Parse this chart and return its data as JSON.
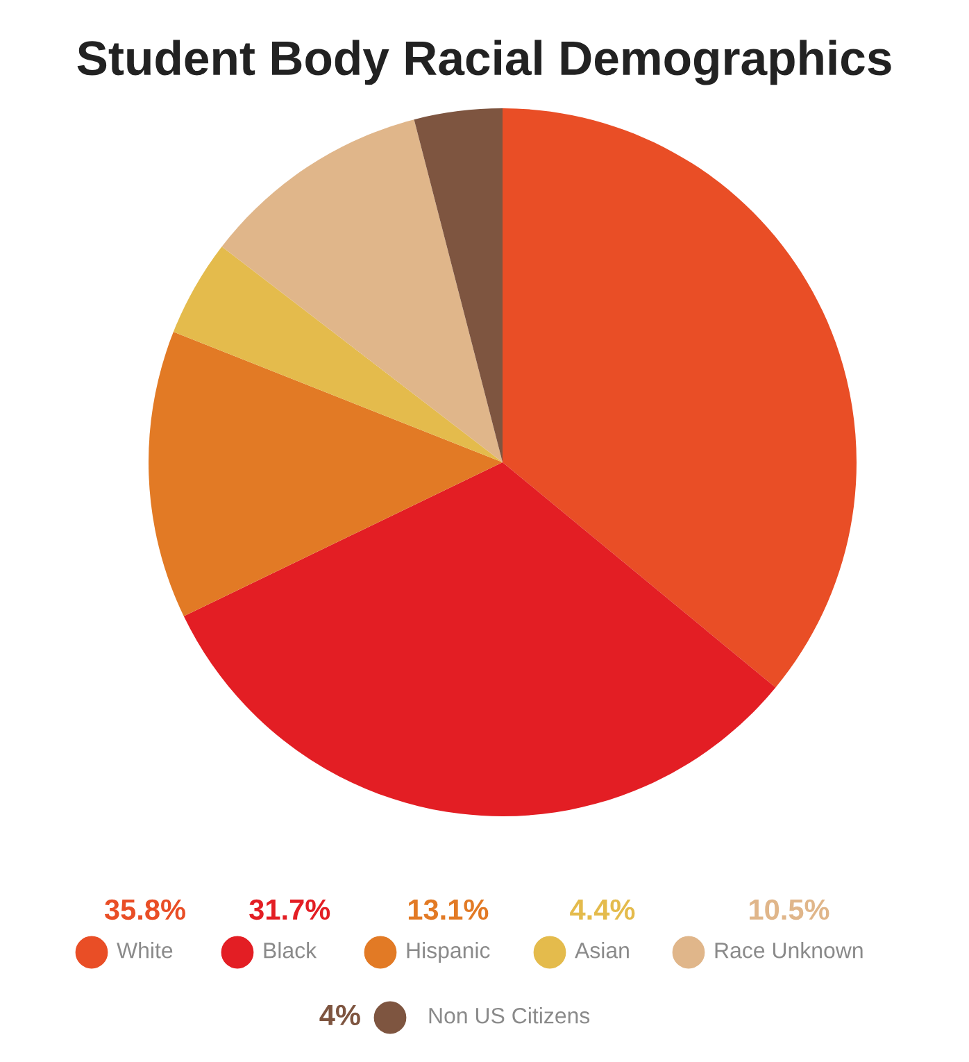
{
  "chart_data": {
    "type": "pie",
    "title": "Student Body Racial Demographics",
    "categories": [
      "White",
      "Black",
      "Hispanic",
      "Asian",
      "Race Unknown",
      "Non US Citizens"
    ],
    "values": [
      35.8,
      31.7,
      13.1,
      4.4,
      10.5,
      4
    ],
    "value_labels": [
      "35.8%",
      "31.7%",
      "13.1%",
      "4.4%",
      "10.5%",
      "4%"
    ],
    "colors": [
      "#e94e26",
      "#e31e24",
      "#e27a25",
      "#e4bb4c",
      "#e0b68a",
      "#7e5540"
    ],
    "legend": "bottom"
  }
}
